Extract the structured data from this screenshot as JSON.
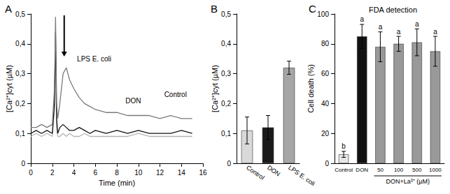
{
  "chart_data": [
    {
      "panel": "A",
      "type": "line",
      "xlabel": "Time (min)",
      "ylabel": "[Ca²⁺]cyt (µM)",
      "x": [
        0,
        0.5,
        1,
        1.5,
        2,
        2.2,
        2.3,
        2.4,
        2.5,
        2.7,
        3,
        3.3,
        3.6,
        4,
        4.5,
        5,
        5.5,
        6,
        7,
        8,
        9,
        10,
        11,
        12,
        13,
        14,
        15
      ],
      "series": [
        {
          "name": "LPS E. coli",
          "color": "#7a7a7a",
          "values": [
            0.12,
            0.12,
            0.13,
            0.12,
            0.13,
            0.25,
            0.49,
            0.2,
            0.15,
            0.2,
            0.3,
            0.32,
            0.28,
            0.25,
            0.22,
            0.2,
            0.19,
            0.18,
            0.17,
            0.17,
            0.16,
            0.16,
            0.16,
            0.15,
            0.16,
            0.15,
            0.15
          ]
        },
        {
          "name": "DON",
          "color": "#111111",
          "values": [
            0.1,
            0.11,
            0.1,
            0.11,
            0.1,
            0.2,
            0.44,
            0.15,
            0.1,
            0.12,
            0.13,
            0.12,
            0.11,
            0.11,
            0.12,
            0.11,
            0.1,
            0.11,
            0.1,
            0.11,
            0.1,
            0.11,
            0.1,
            0.1,
            0.1,
            0.11,
            0.1
          ]
        },
        {
          "name": "Control",
          "color": "#b5b5b5",
          "values": [
            0.09,
            0.1,
            0.09,
            0.1,
            0.09,
            0.18,
            0.4,
            0.12,
            0.09,
            0.09,
            0.1,
            0.09,
            0.1,
            0.09,
            0.09,
            0.1,
            0.09,
            0.09,
            0.09,
            0.09,
            0.09,
            0.1,
            0.09,
            0.09,
            0.09,
            0.09,
            0.09
          ]
        }
      ],
      "annotations": [
        {
          "text": "LPS E. coli",
          "x": 4.3,
          "y": 0.35
        },
        {
          "text": "DON",
          "x": 8.8,
          "y": 0.21
        },
        {
          "text": "Control",
          "x": 12.4,
          "y": 0.23
        }
      ],
      "xlim": [
        0,
        16
      ],
      "xticks": [
        0,
        2,
        4,
        6,
        8,
        10,
        12,
        14,
        16
      ],
      "ylim": [
        0,
        0.5
      ],
      "yticks": [
        0,
        {
          "value": 0.1,
          "label": "0,1"
        },
        {
          "value": 0.2,
          "label": "0,2"
        },
        {
          "value": 0.3,
          "label": "0,3"
        },
        {
          "value": 0.4,
          "label": "0,4"
        },
        {
          "value": 0.5,
          "label": "0,5"
        }
      ],
      "grid": false
    },
    {
      "panel": "B",
      "type": "bar",
      "ylabel": "[Ca²⁺]cyt (µM)",
      "categories": [
        "Control",
        "DON",
        "LPS E. coli"
      ],
      "values": [
        0.11,
        0.12,
        0.32
      ],
      "errors": [
        0.045,
        0.04,
        0.022
      ],
      "colors": [
        "#d9d9d9",
        "#1a1a1a",
        "#a6a6a6"
      ],
      "ylim": [
        0,
        0.5
      ],
      "yticks": [
        0,
        {
          "value": 0.1,
          "label": "0,1"
        },
        {
          "value": 0.2,
          "label": "0,2"
        },
        {
          "value": 0.3,
          "label": "0,3"
        },
        {
          "value": 0.4,
          "label": "0,4"
        },
        {
          "value": 0.5,
          "label": "0,5"
        }
      ],
      "grid": false
    },
    {
      "panel": "C",
      "type": "bar",
      "title": "FDA detection",
      "ylabel": "Cell death (%)",
      "categories": [
        "Control",
        "DON",
        "50",
        "100",
        "500",
        "1000"
      ],
      "values": [
        6,
        85,
        78,
        80,
        81,
        75
      ],
      "errors": [
        2,
        8,
        10,
        5,
        9,
        10
      ],
      "letters": [
        "b",
        "a",
        "a",
        "a",
        "a",
        "a"
      ],
      "group_label": "DON+La³⁺ (µM)",
      "colors": [
        "#e6e6e6",
        "#111111",
        "#999999",
        "#999999",
        "#999999",
        "#999999"
      ],
      "ylim": [
        0,
        100
      ],
      "yticks": [
        0,
        20,
        40,
        60,
        80,
        100
      ],
      "grid": false
    }
  ]
}
